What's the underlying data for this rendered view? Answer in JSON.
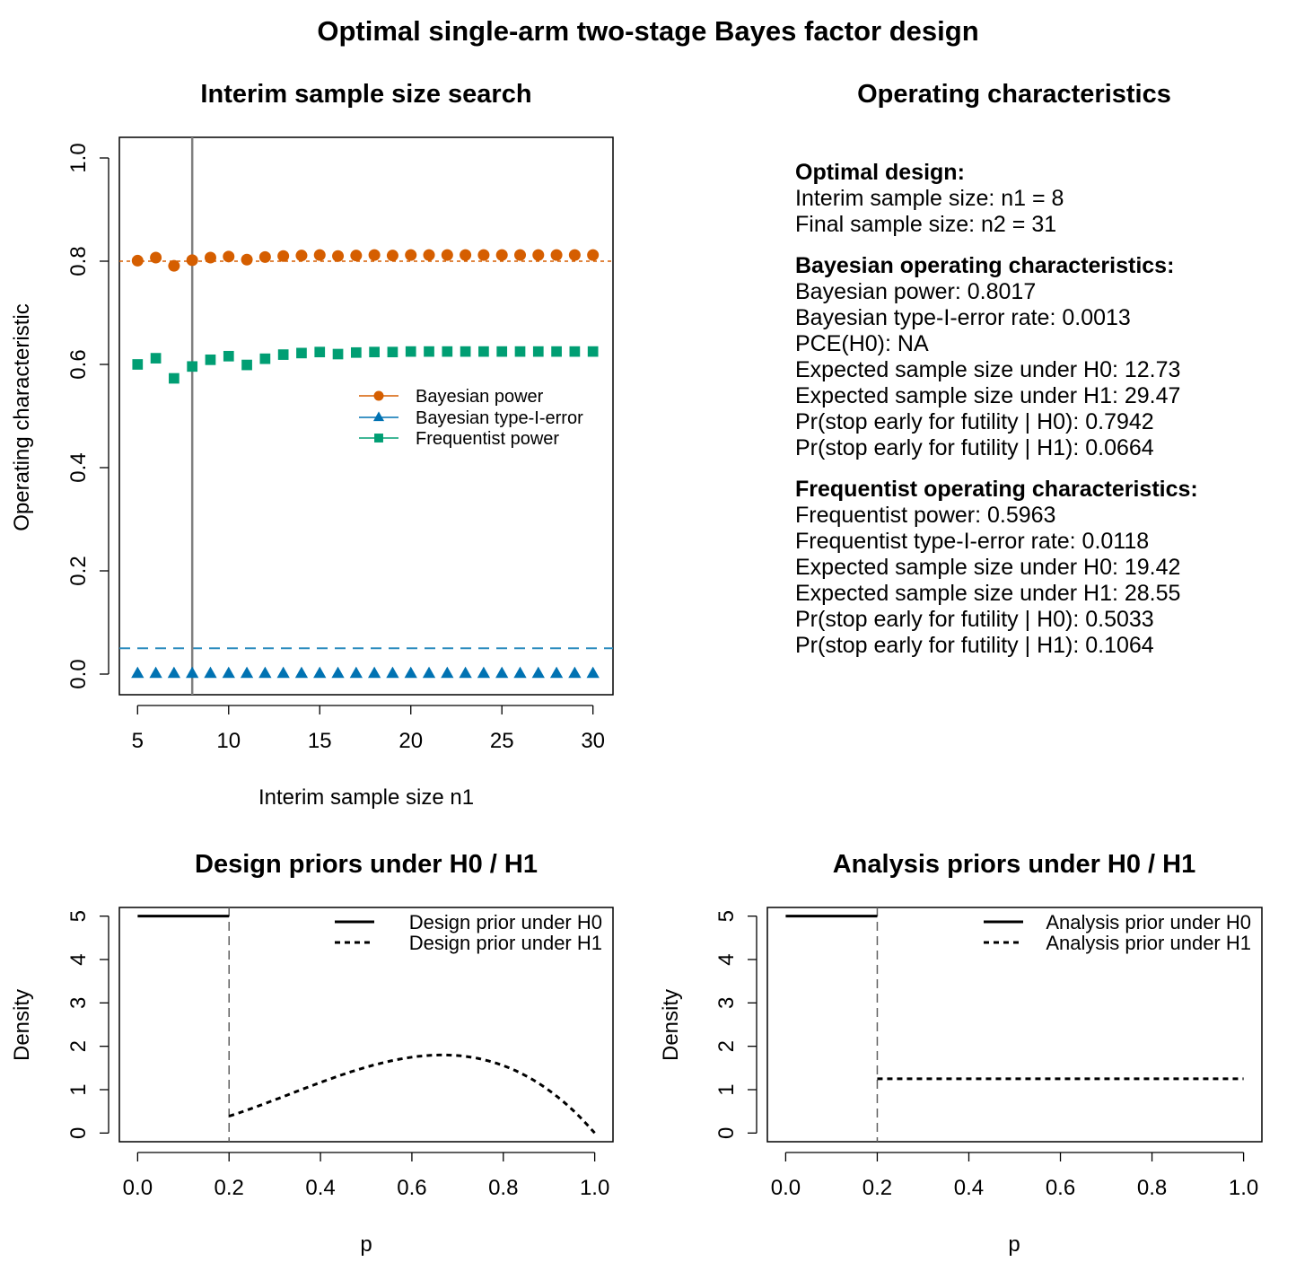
{
  "main_title": "Optimal single-arm two-stage Bayes factor design",
  "colors": {
    "bayesian_power": "#d55e00",
    "type1": "#0072b2",
    "freq_power": "#009e73",
    "selected_line": "#808080",
    "power_threshold": "#d55e00",
    "alpha_threshold": "#2b8cbe"
  },
  "panels": {
    "search": {
      "title": "Interim sample size search",
      "xlabel": "Interim sample size n1",
      "ylabel": "Operating characteristic",
      "legend": [
        "Bayesian power",
        "Bayesian type-I-error",
        "Frequentist power"
      ]
    },
    "oc": {
      "title": "Operating characteristics",
      "sections": [
        {
          "heading": "Optimal design:",
          "lines": [
            "Interim sample size: n1 = 8",
            "Final sample size: n2 = 31"
          ]
        },
        {
          "heading": "Bayesian operating characteristics:",
          "lines": [
            "Bayesian power: 0.8017",
            "Bayesian type-I-error rate: 0.0013",
            "PCE(H0): NA",
            "Expected sample size under H0: 12.73",
            "Expected sample size under H1: 29.47",
            "Pr(stop early for futility | H0): 0.7942",
            "Pr(stop early for futility | H1): 0.0664"
          ]
        },
        {
          "heading": "Frequentist operating characteristics:",
          "lines": [
            "Frequentist power: 0.5963",
            "Frequentist type-I-error rate: 0.0118",
            "Expected sample size under H0: 19.42",
            "Expected sample size under H1: 28.55",
            "Pr(stop early for futility | H0): 0.5033",
            "Pr(stop early for futility | H1): 0.1064"
          ]
        }
      ]
    },
    "design": {
      "title": "Design priors under H0 / H1",
      "xlabel": "p",
      "ylabel": "Density",
      "legend": [
        "Design prior under H0",
        "Design prior under H1"
      ]
    },
    "analysis": {
      "title": "Analysis priors under H0 / H1",
      "xlabel": "p",
      "ylabel": "Density",
      "legend": [
        "Analysis prior under H0",
        "Analysis prior under H1"
      ]
    }
  },
  "chart_data": [
    {
      "type": "scatter",
      "panel": "search",
      "x": [
        5,
        6,
        7,
        8,
        9,
        10,
        11,
        12,
        13,
        14,
        15,
        16,
        17,
        18,
        19,
        20,
        21,
        22,
        23,
        24,
        25,
        26,
        27,
        28,
        29,
        30
      ],
      "series": [
        {
          "name": "Bayesian power",
          "marker": "circle",
          "values": [
            0.801,
            0.807,
            0.791,
            0.802,
            0.807,
            0.809,
            0.803,
            0.808,
            0.81,
            0.811,
            0.812,
            0.81,
            0.811,
            0.812,
            0.811,
            0.812,
            0.812,
            0.812,
            0.812,
            0.812,
            0.812,
            0.812,
            0.812,
            0.812,
            0.812,
            0.812
          ]
        },
        {
          "name": "Bayesian type-I-error",
          "marker": "triangle",
          "values": [
            0.001,
            0.001,
            0.001,
            0.001,
            0.001,
            0.001,
            0.001,
            0.001,
            0.001,
            0.001,
            0.001,
            0.001,
            0.001,
            0.001,
            0.001,
            0.001,
            0.001,
            0.001,
            0.001,
            0.001,
            0.001,
            0.001,
            0.001,
            0.001,
            0.001,
            0.001
          ]
        },
        {
          "name": "Frequentist power",
          "marker": "square",
          "values": [
            0.6,
            0.612,
            0.573,
            0.596,
            0.609,
            0.616,
            0.599,
            0.611,
            0.619,
            0.622,
            0.624,
            0.62,
            0.623,
            0.624,
            0.624,
            0.625,
            0.625,
            0.625,
            0.625,
            0.625,
            0.625,
            0.625,
            0.625,
            0.625,
            0.625,
            0.625
          ]
        }
      ],
      "hlines": [
        0.8,
        0.05
      ],
      "vline": 8,
      "xticks": [
        5,
        10,
        15,
        20,
        25,
        30
      ],
      "yticks": [
        0.0,
        0.2,
        0.4,
        0.6,
        0.8,
        1.0
      ],
      "ytick_labels": [
        "0.0",
        "0.2",
        "0.4",
        "0.6",
        "0.8",
        "1.0"
      ],
      "xlim": [
        4,
        31.1
      ],
      "ylim": [
        -0.04,
        1.04
      ],
      "legend_position": "right"
    },
    {
      "type": "line",
      "panel": "design",
      "series": [
        {
          "name": "Design prior under H0",
          "style": "solid",
          "function": "uniform",
          "support": [
            0,
            0.2
          ],
          "density": 5
        },
        {
          "name": "Design prior under H1",
          "style": "dotted",
          "function": "scaled beta(3,2)",
          "support": [
            0.2,
            1
          ],
          "scale": 1.0122
        }
      ],
      "vline": 0.2,
      "xticks": [
        0.0,
        0.2,
        0.4,
        0.6,
        0.8,
        1.0
      ],
      "xtick_labels": [
        "0.0",
        "0.2",
        "0.4",
        "0.6",
        "0.8",
        "1.0"
      ],
      "yticks": [
        0,
        1,
        2,
        3,
        4,
        5
      ],
      "xlim": [
        -0.04,
        1.04
      ],
      "ylim": [
        -0.2,
        5.2
      ],
      "legend_position": "top-right"
    },
    {
      "type": "line",
      "panel": "analysis",
      "series": [
        {
          "name": "Analysis prior under H0",
          "style": "solid",
          "function": "uniform",
          "support": [
            0,
            0.2
          ],
          "density": 5
        },
        {
          "name": "Analysis prior under H1",
          "style": "dotted",
          "function": "uniform",
          "support": [
            0.2,
            1
          ],
          "density": 1.25
        }
      ],
      "vline": 0.2,
      "xticks": [
        0.0,
        0.2,
        0.4,
        0.6,
        0.8,
        1.0
      ],
      "xtick_labels": [
        "0.0",
        "0.2",
        "0.4",
        "0.6",
        "0.8",
        "1.0"
      ],
      "yticks": [
        0,
        1,
        2,
        3,
        4,
        5
      ],
      "xlim": [
        -0.04,
        1.04
      ],
      "ylim": [
        -0.2,
        5.2
      ],
      "legend_position": "top-right"
    }
  ]
}
